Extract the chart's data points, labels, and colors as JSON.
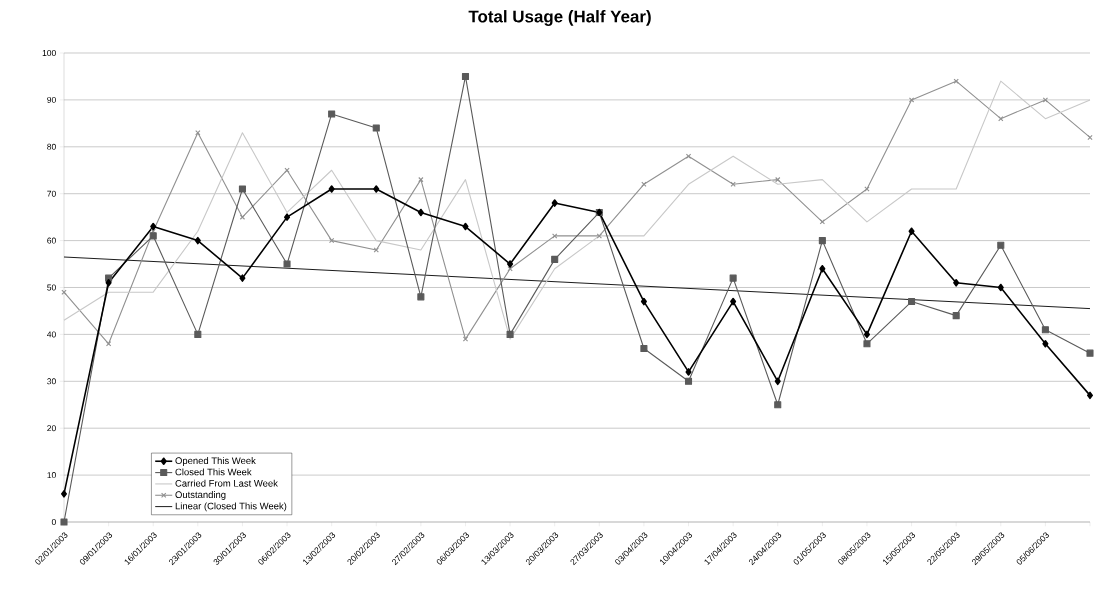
{
  "chart_data": {
    "type": "line",
    "title": "Total Usage (Half Year)",
    "categories": [
      "02/01/2003",
      "09/01/2003",
      "16/01/2003",
      "23/01/2003",
      "30/01/2003",
      "06/02/2003",
      "13/02/2003",
      "20/02/2003",
      "27/02/2003",
      "06/03/2003",
      "13/03/2003",
      "20/03/2003",
      "27/03/2003",
      "03/04/2003",
      "10/04/2003",
      "17/04/2003",
      "24/04/2003",
      "01/05/2003",
      "08/05/2003",
      "15/05/2003",
      "22/05/2003",
      "29/05/2003",
      "05/06/2003",
      null
    ],
    "series": [
      {
        "name": "Opened This Week",
        "color": "#000000",
        "marker": "diamond",
        "values": [
          6,
          51,
          63,
          60,
          52,
          65,
          71,
          71,
          66,
          63,
          55,
          68,
          66,
          47,
          32,
          47,
          30,
          54,
          40,
          62,
          51,
          50,
          38,
          27
        ]
      },
      {
        "name": "Closed This Week",
        "color": "#5a5a5a",
        "marker": "square",
        "values": [
          0,
          52,
          61,
          40,
          71,
          55,
          87,
          84,
          48,
          95,
          40,
          56,
          66,
          37,
          30,
          52,
          25,
          60,
          38,
          47,
          44,
          59,
          41,
          36
        ]
      },
      {
        "name": "Carried From Last Week",
        "color": "#c8c8c8",
        "marker": "none",
        "values": [
          43,
          49,
          49,
          62,
          83,
          66,
          75,
          60,
          58,
          73,
          39,
          54,
          61,
          61,
          72,
          78,
          72,
          73,
          64,
          71,
          71,
          94,
          86,
          90
        ]
      },
      {
        "name": "Outstanding",
        "color": "#909090",
        "marker": "cross",
        "values": [
          49,
          38,
          62,
          83,
          65,
          75,
          60,
          58,
          73,
          39,
          54,
          61,
          61,
          72,
          78,
          72,
          73,
          64,
          71,
          90,
          94,
          86,
          90,
          82
        ]
      },
      {
        "name": "Linear (Closed This Week)",
        "color": "#000000",
        "marker": "none",
        "values": [
          56.5,
          null,
          null,
          null,
          null,
          null,
          null,
          null,
          null,
          null,
          null,
          null,
          null,
          null,
          null,
          null,
          null,
          null,
          null,
          null,
          null,
          null,
          null,
          45.5
        ]
      }
    ],
    "ylim": [
      0,
      100
    ],
    "yticks": [
      0,
      10,
      20,
      30,
      40,
      50,
      60,
      70,
      80,
      90,
      100
    ],
    "grid": "y",
    "legend": "bottom left",
    "line_style": "solid"
  }
}
